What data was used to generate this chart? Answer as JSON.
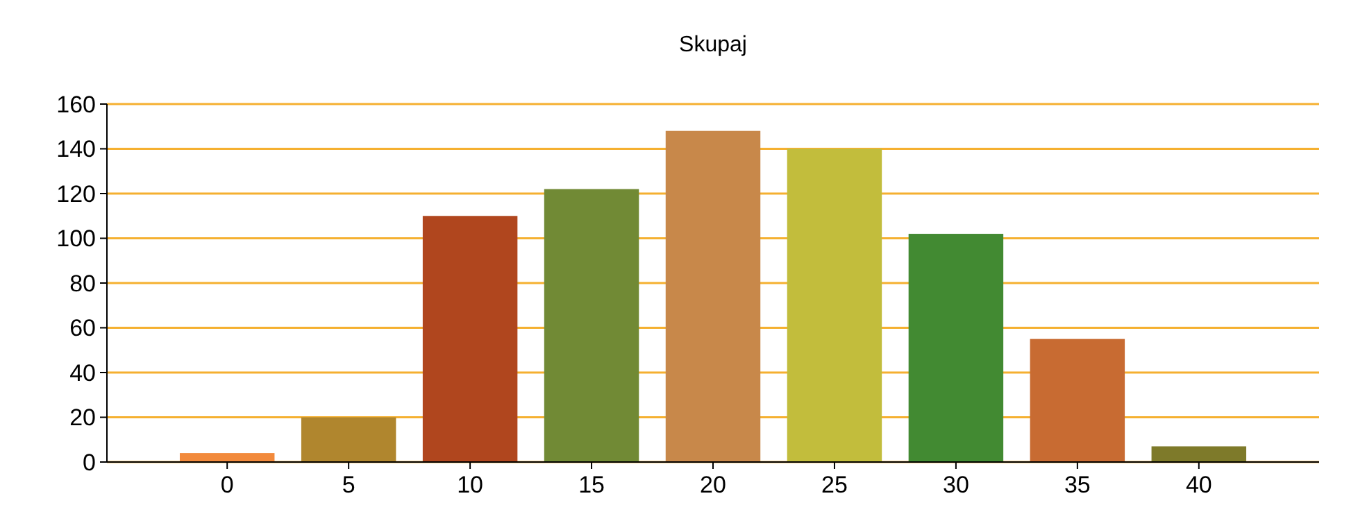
{
  "chart_data": {
    "type": "bar",
    "title": "Skupaj",
    "categories": [
      "0",
      "5",
      "10",
      "15",
      "20",
      "25",
      "30",
      "35",
      "40"
    ],
    "values": [
      4,
      20,
      110,
      122,
      148,
      140,
      102,
      55,
      7
    ],
    "colors": [
      "#f28a3c",
      "#b0862e",
      "#b0461e",
      "#718a35",
      "#c8884a",
      "#c2bd3c",
      "#428a32",
      "#c86b32",
      "#7e7a2a"
    ],
    "ylim": [
      0,
      160
    ],
    "yticks": [
      0,
      20,
      40,
      60,
      80,
      100,
      120,
      140,
      160
    ],
    "grid": "y"
  }
}
